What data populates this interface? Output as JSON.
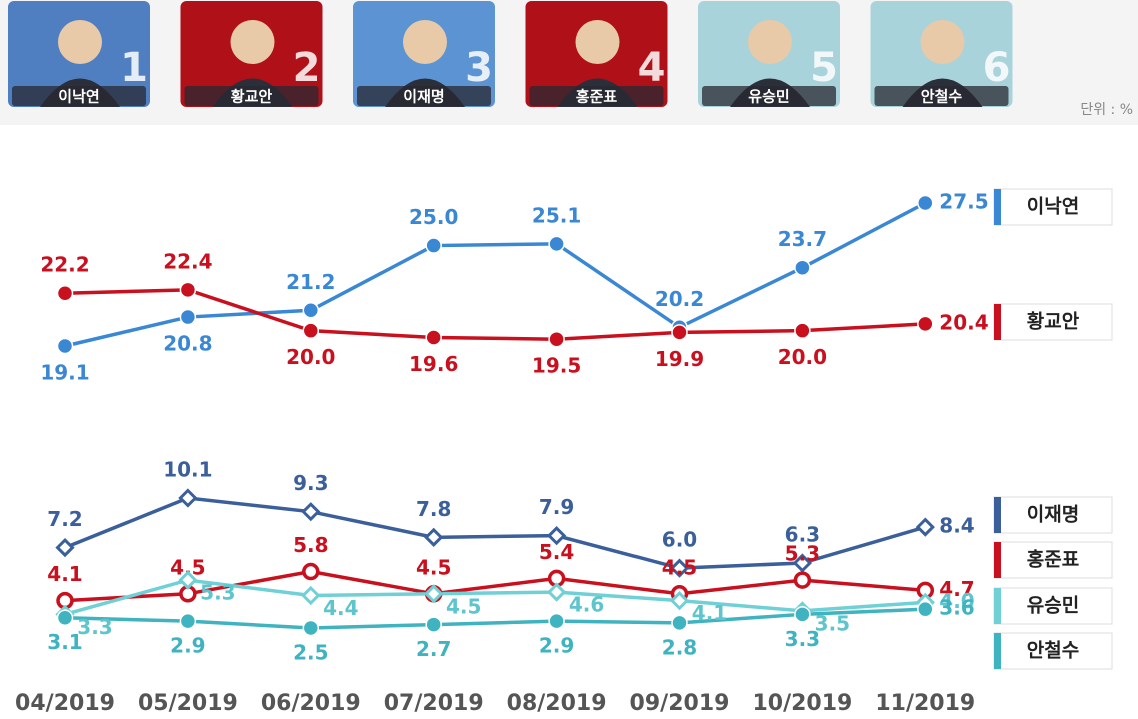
{
  "candidates": [
    {
      "name": "이낙연",
      "number": 1
    },
    {
      "name": "황교안",
      "number": 2
    },
    {
      "name": "이재명",
      "number": 3
    },
    {
      "name": "홍준표",
      "number": 4
    },
    {
      "name": "유승민",
      "number": 5
    },
    {
      "name": "안철수",
      "number": 6
    }
  ],
  "unit": "단위 : %",
  "chart_data": [
    {
      "type": "line",
      "series": [
        {
          "name": "이낙연",
          "color": "#3a87d4",
          "marker": "circle",
          "values": [
            19.1,
            20.8,
            21.2,
            25.0,
            25.1,
            20.2,
            23.7,
            27.5
          ],
          "value_labels": [
            "19.1",
            "20.8",
            "21.2",
            "25.0",
            "25.1",
            "20.2",
            "23.7",
            "27.5"
          ]
        },
        {
          "name": "황교안",
          "color": "#c8101e",
          "marker": "circle",
          "values": [
            22.2,
            22.4,
            20.0,
            19.6,
            19.5,
            19.9,
            20.0,
            20.4
          ],
          "value_labels": [
            "22.2",
            "22.4",
            "20.0",
            "19.6",
            "19.5",
            "19.9",
            "20.0",
            "20.4"
          ]
        }
      ]
    },
    {
      "type": "line",
      "categories": [
        "04/2019",
        "05/2019",
        "06/2019",
        "07/2019",
        "08/2019",
        "09/2019",
        "10/2019",
        "11/2019"
      ],
      "series": [
        {
          "name": "이재명",
          "color": "#3a5f9a",
          "marker": "open-diamond",
          "values": [
            7.2,
            10.1,
            9.3,
            7.8,
            7.9,
            6.0,
            6.3,
            8.4
          ],
          "value_labels": [
            "7.2",
            "10.1",
            "9.3",
            "7.8",
            "7.9",
            "6.0",
            "6.3",
            "8.4"
          ]
        },
        {
          "name": "홍준표",
          "color": "#c8101e",
          "marker": "open-circle",
          "values": [
            4.1,
            4.5,
            5.8,
            4.5,
            5.4,
            4.5,
            5.3,
            4.7
          ],
          "value_labels": [
            "4.1",
            "4.5",
            "5.8",
            "4.5",
            "5.4",
            "4.5",
            "5.3",
            "4.7"
          ]
        },
        {
          "name": "유승민",
          "color": "#6fd0d6",
          "marker": "open-diamond",
          "values": [
            3.3,
            5.3,
            4.4,
            4.5,
            4.6,
            4.1,
            3.5,
            4.0
          ],
          "value_labels": [
            "3.3",
            "5.3",
            "4.4",
            "4.5",
            "4.6",
            "4.1",
            "3.5",
            "4.0"
          ]
        },
        {
          "name": "안철수",
          "color": "#3fb3c0",
          "marker": "circle",
          "values": [
            3.1,
            2.9,
            2.5,
            2.7,
            2.9,
            2.8,
            3.3,
            3.6
          ],
          "value_labels": [
            "3.1",
            "2.9",
            "2.5",
            "2.7",
            "2.9",
            "2.8",
            "3.3",
            "3.6"
          ]
        }
      ]
    }
  ]
}
